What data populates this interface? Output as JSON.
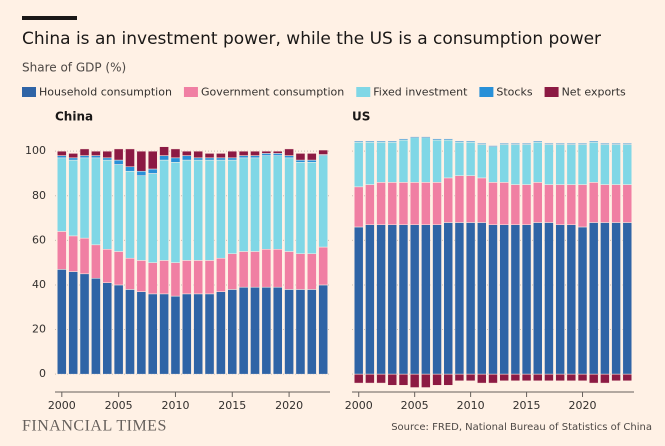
{
  "title": "China is an investment power, while the US is a consumption power",
  "subtitle": "Share of GDP (%)",
  "source": "Source: FRED, National Bureau of Statistics of China",
  "brand": "FINANCIAL TIMES",
  "chart_data": [
    {
      "type": "bar",
      "stacked": true,
      "title": "China",
      "x": [
        2000,
        2001,
        2002,
        2003,
        2004,
        2005,
        2006,
        2007,
        2008,
        2009,
        2010,
        2011,
        2012,
        2013,
        2014,
        2015,
        2016,
        2017,
        2018,
        2019,
        2020,
        2021,
        2022,
        2023
      ],
      "xlim": [
        1999.4,
        2023.6
      ],
      "xticks": [
        2000,
        2005,
        2010,
        2015,
        2020
      ],
      "ylim": [
        -8,
        105
      ],
      "yticks": [
        0,
        20,
        40,
        60,
        80,
        100
      ],
      "grid": true,
      "series": [
        {
          "name": "Household consumption",
          "color": "#2f64a6",
          "values": [
            47,
            46,
            45,
            43,
            41,
            40,
            38,
            37,
            36,
            36,
            35,
            36,
            36,
            36,
            37,
            38,
            39,
            39,
            39,
            39,
            38,
            38,
            38,
            40
          ]
        },
        {
          "name": "Government consumption",
          "color": "#f07fa3",
          "values": [
            17,
            16,
            16,
            15,
            15,
            15,
            14,
            14,
            14,
            15,
            15,
            15,
            15,
            15,
            15,
            16,
            16,
            16,
            17,
            17,
            17,
            16,
            16,
            17
          ]
        },
        {
          "name": "Fixed investment",
          "color": "#80d7e6",
          "values": [
            33,
            34,
            36,
            39,
            40,
            39,
            39,
            38,
            40,
            45,
            45,
            45,
            45,
            45,
            44,
            42,
            42,
            42,
            42,
            42,
            42,
            41,
            41,
            41
          ]
        },
        {
          "name": "Stocks",
          "color": "#2890d8",
          "values": [
            1,
            1,
            1,
            1,
            1,
            2,
            2,
            2,
            2,
            2,
            2,
            2,
            1,
            1,
            1,
            1,
            1,
            1,
            1,
            1,
            1,
            1,
            1,
            0.5
          ]
        },
        {
          "name": "Net exports",
          "color": "#8c1a43",
          "values": [
            2,
            2,
            3,
            2,
            3,
            5,
            8,
            9,
            8,
            4,
            4,
            2,
            3,
            2,
            2,
            3,
            2,
            2,
            1,
            1,
            3,
            3,
            3,
            2
          ]
        }
      ]
    },
    {
      "type": "bar",
      "stacked": true,
      "title": "US",
      "x": [
        2000,
        2001,
        2002,
        2003,
        2004,
        2005,
        2006,
        2007,
        2008,
        2009,
        2010,
        2011,
        2012,
        2013,
        2014,
        2015,
        2016,
        2017,
        2018,
        2019,
        2020,
        2021,
        2022,
        2023,
        2024
      ],
      "xlim": [
        1999.4,
        2024.6
      ],
      "xticks": [
        2000,
        2005,
        2010,
        2015,
        2020
      ],
      "ylim": [
        -8,
        105
      ],
      "yticks": [
        0,
        20,
        40,
        60,
        80,
        100
      ],
      "grid": true,
      "series": [
        {
          "values": [
            66,
            67,
            67,
            67,
            67,
            67,
            67,
            67,
            68,
            68,
            68,
            68,
            67,
            67,
            67,
            67,
            68,
            68,
            67,
            67,
            66,
            68,
            68,
            68,
            68
          ]
        },
        {
          "values": [
            18,
            18,
            19,
            19,
            19,
            19,
            19,
            19,
            20,
            21,
            21,
            20,
            19,
            19,
            18,
            18,
            18,
            17,
            18,
            18,
            19,
            18,
            17,
            17,
            17
          ]
        },
        {
          "values": [
            20,
            19,
            18,
            18,
            19,
            20,
            20,
            19,
            17,
            15,
            15,
            15,
            16,
            17,
            18,
            18,
            18,
            18,
            18,
            18,
            18,
            18,
            18,
            18,
            18
          ]
        },
        {
          "values": [
            0.5,
            0.5,
            0.5,
            0.5,
            0.5,
            0.5,
            0.5,
            0.5,
            0.5,
            0.5,
            0.5,
            0.5,
            0.5,
            0.5,
            0.5,
            0.5,
            0.5,
            0.5,
            0.5,
            0.5,
            0.5,
            0.5,
            0.5,
            0.5,
            0.5
          ]
        },
        {
          "values": [
            -4,
            -4,
            -4,
            -5,
            -5,
            -6,
            -6,
            -5,
            -5,
            -3,
            -3,
            -4,
            -4,
            -3,
            -3,
            -3,
            -3,
            -3,
            -3,
            -3,
            -3,
            -4,
            -4,
            -3,
            -3
          ]
        }
      ]
    }
  ]
}
